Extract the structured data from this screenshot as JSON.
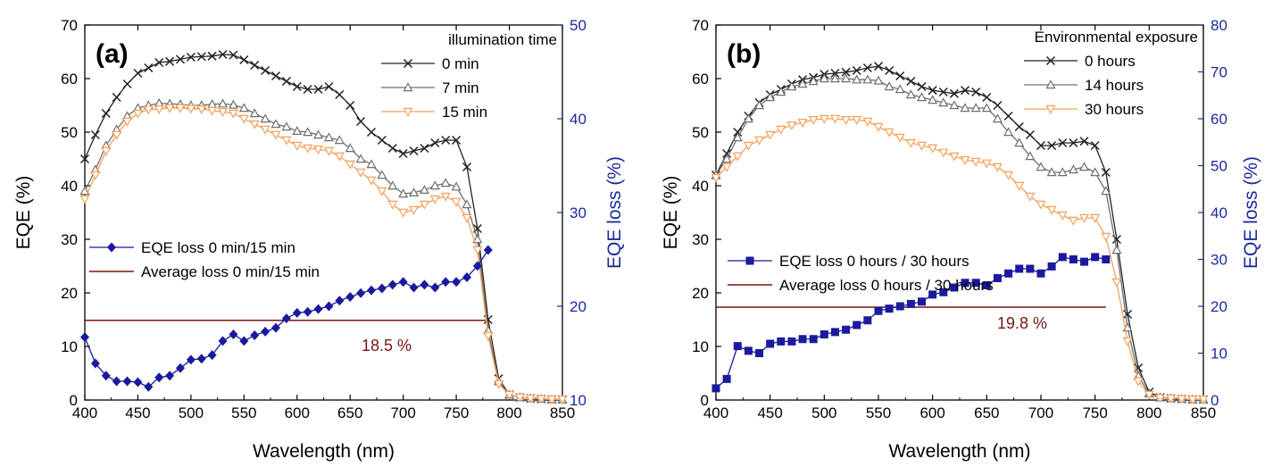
{
  "colors": {
    "black_series": "#222222",
    "gray_series": "#6e6e6e",
    "orange_series": "#f7a05a",
    "blue_series": "#1a1a9e",
    "average_line": "#7a1414",
    "right_axis": "#1a2a9c"
  },
  "chart_data": [
    {
      "type": "line",
      "panel_label": "(a)",
      "xlabel": "Wavelength (nm)",
      "ylabel": "EQE (%)",
      "ylabel_right": "EQE loss (%)",
      "xlim": [
        400,
        850
      ],
      "ylim": [
        0,
        70
      ],
      "ylim_right": [
        10,
        50
      ],
      "x_ticks": [
        "400",
        "450",
        "500",
        "550",
        "600",
        "650",
        "700",
        "750",
        "800",
        "850"
      ],
      "y_ticks": [
        "0",
        "10",
        "20",
        "30",
        "40",
        "50",
        "60",
        "70"
      ],
      "y_ticks_right": [
        "10",
        "20",
        "30",
        "40",
        "50"
      ],
      "legend_title": "illumination time",
      "legend_position": "top-right",
      "lower_legend_position": "left",
      "annotation": "18.5 %",
      "series": [
        {
          "name": "0 min",
          "axis": "left",
          "marker": "x",
          "color": "#222222",
          "x": [
            400,
            410,
            420,
            430,
            440,
            450,
            460,
            470,
            480,
            490,
            500,
            510,
            520,
            530,
            540,
            550,
            560,
            570,
            580,
            590,
            600,
            610,
            620,
            630,
            640,
            650,
            660,
            670,
            680,
            690,
            700,
            710,
            720,
            730,
            740,
            750,
            760,
            770,
            780,
            790,
            800,
            810,
            820,
            830,
            840,
            850
          ],
          "y": [
            45,
            49.5,
            53.5,
            56.5,
            59,
            61,
            62,
            63,
            63.2,
            63.6,
            64,
            64.1,
            64.2,
            64.5,
            64.4,
            63.5,
            62.5,
            61.5,
            60.5,
            59.5,
            58.5,
            58,
            58,
            58.5,
            57,
            55,
            52,
            50,
            48.5,
            47,
            46,
            46.5,
            47,
            48,
            48.5,
            48.5,
            43.5,
            32,
            15,
            4,
            1,
            0.5,
            0.3,
            0.2,
            0.1,
            0.1
          ]
        },
        {
          "name": "7 min",
          "axis": "left",
          "marker": "triangle-up",
          "color": "#6e6e6e",
          "x": [
            400,
            410,
            420,
            430,
            440,
            450,
            460,
            470,
            480,
            490,
            500,
            510,
            520,
            530,
            540,
            550,
            560,
            570,
            580,
            590,
            600,
            610,
            620,
            630,
            640,
            650,
            660,
            670,
            680,
            690,
            700,
            710,
            720,
            730,
            740,
            750,
            760,
            770,
            780,
            790,
            800,
            810,
            820,
            830,
            840,
            850
          ],
          "y": [
            39,
            43,
            47.5,
            50.5,
            53,
            54.5,
            55,
            55.4,
            55.3,
            55.2,
            55,
            55,
            55.2,
            55.3,
            55.1,
            54.5,
            53.5,
            52.5,
            51.5,
            51,
            50.2,
            50,
            49.5,
            49,
            48.5,
            47,
            45,
            44,
            42,
            40,
            38.5,
            38.7,
            39.2,
            40,
            40.5,
            39.8,
            36.5,
            30,
            13,
            3.5,
            1,
            0.5,
            0.3,
            0.2,
            0.1,
            0.1
          ]
        },
        {
          "name": "15 min",
          "axis": "left",
          "marker": "triangle-down",
          "color": "#f7a05a",
          "x": [
            400,
            410,
            420,
            430,
            440,
            450,
            460,
            470,
            480,
            490,
            500,
            510,
            520,
            530,
            540,
            550,
            560,
            570,
            580,
            590,
            600,
            610,
            620,
            630,
            640,
            650,
            660,
            670,
            680,
            690,
            700,
            710,
            720,
            730,
            740,
            750,
            760,
            770,
            780,
            790,
            800,
            810,
            820,
            830,
            840,
            850
          ],
          "y": [
            37.5,
            42,
            46.5,
            49.5,
            52,
            53.5,
            54.2,
            54.3,
            54.5,
            54.5,
            54.4,
            54.3,
            54,
            53.8,
            53.5,
            52.5,
            51.5,
            50.5,
            49.5,
            48.5,
            47.5,
            47,
            46.8,
            46.5,
            45.5,
            44,
            42.5,
            41,
            39,
            36.5,
            35,
            35.5,
            36.5,
            37.5,
            38,
            37,
            34,
            28,
            12,
            3,
            1,
            0.5,
            0.3,
            0.2,
            0.1,
            0.1
          ]
        },
        {
          "name": "EQE loss 0 min/15 min",
          "axis": "right",
          "marker": "diamond",
          "color": "#1a1a9e",
          "x": [
            400,
            410,
            420,
            430,
            440,
            450,
            460,
            470,
            480,
            490,
            500,
            510,
            520,
            530,
            540,
            550,
            560,
            570,
            580,
            590,
            600,
            610,
            620,
            630,
            640,
            650,
            660,
            670,
            680,
            690,
            700,
            710,
            720,
            730,
            740,
            750,
            760,
            770,
            780
          ],
          "y": [
            16.7,
            13.9,
            12.6,
            12.0,
            12.0,
            11.9,
            11.4,
            12.4,
            12.6,
            13.4,
            14.3,
            14.4,
            14.8,
            16.3,
            17.0,
            16.3,
            16.9,
            17.3,
            17.7,
            18.7,
            19.3,
            19.4,
            19.7,
            20.0,
            20.6,
            21.0,
            21.4,
            21.7,
            21.9,
            22.3,
            22.6,
            22.0,
            22.3,
            22.0,
            22.6,
            22.6,
            23.1,
            24.3,
            26.0
          ]
        }
      ],
      "average_series": {
        "name": "Average loss 0 min/15 min",
        "axis": "right",
        "value": 18.5,
        "x_range": [
          400,
          780
        ],
        "color": "#7a1414"
      }
    },
    {
      "type": "line",
      "panel_label": "(b)",
      "xlabel": "Wavelength (nm)",
      "ylabel": "EQE (%)",
      "ylabel_right": "EQE loss (%)",
      "xlim": [
        400,
        850
      ],
      "ylim": [
        0,
        70
      ],
      "ylim_right": [
        0,
        80
      ],
      "x_ticks": [
        "400",
        "450",
        "500",
        "550",
        "600",
        "650",
        "700",
        "750",
        "800",
        "850"
      ],
      "y_ticks": [
        "0",
        "10",
        "20",
        "30",
        "40",
        "50",
        "60",
        "70"
      ],
      "y_ticks_right": [
        "0",
        "10",
        "20",
        "30",
        "40",
        "50",
        "60",
        "70",
        "80"
      ],
      "legend_title": "Environmental exposure",
      "legend_position": "top-right",
      "lower_legend_position": "left",
      "annotation": "19.8 %",
      "series": [
        {
          "name": "0 hours",
          "axis": "left",
          "marker": "x",
          "color": "#222222",
          "x": [
            400,
            410,
            420,
            430,
            440,
            450,
            460,
            470,
            480,
            490,
            500,
            510,
            520,
            530,
            540,
            550,
            560,
            570,
            580,
            590,
            600,
            610,
            620,
            630,
            640,
            650,
            660,
            670,
            680,
            690,
            700,
            710,
            720,
            730,
            740,
            750,
            760,
            770,
            780,
            790,
            800,
            810,
            820,
            830,
            840,
            850
          ],
          "y": [
            42,
            46,
            50,
            53,
            55.5,
            57,
            58,
            59,
            59.8,
            60.2,
            60.8,
            61,
            61.2,
            61.5,
            62,
            62.3,
            61.5,
            60.5,
            59.5,
            58.5,
            57.8,
            57.5,
            57.2,
            57.8,
            57.5,
            56.5,
            55,
            53,
            51,
            49.5,
            47.5,
            47.5,
            48,
            48,
            48.3,
            47.5,
            42.5,
            30,
            16,
            6,
            1.5,
            0.5,
            0.3,
            0.2,
            0.1,
            0.1
          ]
        },
        {
          "name": "14 hours",
          "axis": "left",
          "marker": "triangle-up",
          "color": "#6e6e6e",
          "x": [
            400,
            410,
            420,
            430,
            440,
            450,
            460,
            470,
            480,
            490,
            500,
            510,
            520,
            530,
            540,
            550,
            560,
            570,
            580,
            590,
            600,
            610,
            620,
            630,
            640,
            650,
            660,
            670,
            680,
            690,
            700,
            710,
            720,
            730,
            740,
            750,
            760,
            770,
            780,
            790,
            800,
            810,
            820,
            830,
            840,
            850
          ],
          "y": [
            42,
            45,
            49,
            52.5,
            55,
            56.5,
            57.5,
            58.5,
            59,
            59.5,
            60,
            60,
            60,
            59.8,
            59.8,
            59.6,
            58.5,
            58,
            57,
            56.5,
            56,
            55.5,
            55,
            54.5,
            54.5,
            54.5,
            52.5,
            50,
            48,
            45.5,
            43.5,
            42.5,
            42.5,
            43,
            43.5,
            42.5,
            39,
            28,
            13.5,
            4.5,
            1.2,
            0.5,
            0.3,
            0.2,
            0.1,
            0.1
          ]
        },
        {
          "name": "30 hours",
          "axis": "left",
          "marker": "triangle-down",
          "color": "#f7a05a",
          "x": [
            400,
            410,
            420,
            430,
            440,
            450,
            460,
            470,
            480,
            490,
            500,
            510,
            520,
            530,
            540,
            550,
            560,
            570,
            580,
            590,
            600,
            610,
            620,
            630,
            640,
            650,
            660,
            670,
            680,
            690,
            700,
            710,
            720,
            730,
            740,
            750,
            760,
            770,
            780,
            790,
            800,
            810,
            820,
            830,
            840,
            850
          ],
          "y": [
            41.5,
            43.5,
            45.5,
            47.5,
            48.5,
            49.5,
            50.5,
            51.3,
            51.8,
            52.3,
            52.5,
            52.5,
            52.3,
            52.3,
            52,
            51,
            50,
            49,
            48,
            47.5,
            47,
            46.2,
            45.5,
            44.8,
            44.5,
            44.2,
            43.5,
            42,
            40,
            38,
            36.5,
            35.5,
            34.5,
            33.5,
            34,
            34,
            30.5,
            22,
            11,
            3.5,
            1,
            0.4,
            0.3,
            0.2,
            0.1,
            0.1
          ]
        },
        {
          "name": "EQE loss 0 hours / 30 hours",
          "axis": "right",
          "marker": "square",
          "color": "#1a1a9e",
          "x": [
            400,
            410,
            420,
            430,
            440,
            450,
            460,
            470,
            480,
            490,
            500,
            510,
            520,
            530,
            540,
            550,
            560,
            570,
            580,
            590,
            600,
            610,
            620,
            630,
            640,
            650,
            660,
            670,
            680,
            690,
            700,
            710,
            720,
            730,
            740,
            750,
            760
          ],
          "y": [
            2.5,
            4.5,
            11.5,
            10.5,
            10.0,
            12.0,
            12.5,
            12.5,
            13.0,
            13.0,
            14.0,
            14.5,
            15.0,
            16.0,
            17.0,
            19.0,
            19.5,
            20.0,
            20.5,
            21.0,
            22.5,
            23.0,
            24.0,
            25.0,
            25.0,
            24.5,
            26.0,
            27.0,
            28.0,
            28.0,
            27.0,
            28.5,
            30.5,
            30.0,
            29.5,
            30.5,
            30.0
          ]
        }
      ],
      "average_series": {
        "name": "Average loss 0 hours / 30 hours",
        "axis": "right",
        "value": 19.8,
        "x_range": [
          400,
          760
        ],
        "color": "#7a1414"
      }
    }
  ]
}
